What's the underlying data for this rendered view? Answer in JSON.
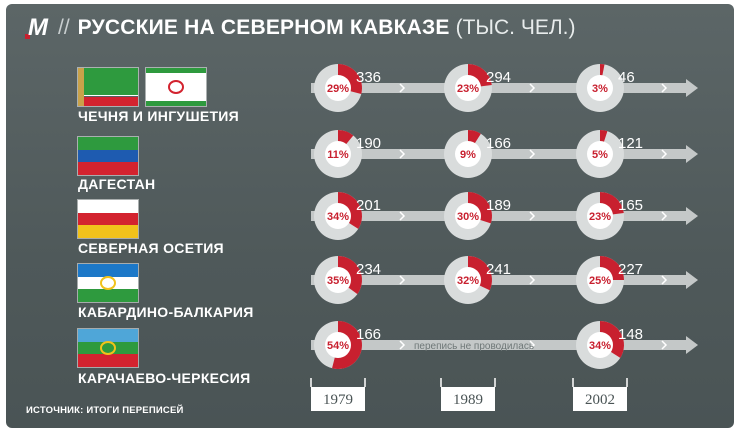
{
  "header": {
    "logo": "М",
    "separator": "//",
    "title": "РУССКИЕ НА СЕВЕРНОМ КАВКАЗЕ",
    "unit": "(ТЫС. ЧЕЛ.)"
  },
  "source": "ИСТОЧНИК: ИТОГИ ПЕРЕПИСЕЙ",
  "colors": {
    "background": "#525c5d",
    "accent_red": "#c8202f",
    "circle_gray": "#d9dcdc",
    "arrow_gray": "#c4c8c8"
  },
  "flags": [
    {
      "name": "chechnya-flag",
      "bands": [
        "#2e9a3e",
        "#ffffff",
        "#d3232f"
      ],
      "heights": [
        0.7,
        0.05,
        0.25
      ],
      "ornament": "#c9a24a"
    },
    {
      "name": "ingushetia-flag",
      "bands": [
        "#2e9a3e",
        "#ffffff",
        "#2e9a3e"
      ],
      "heights": [
        0.14,
        0.72,
        0.14
      ],
      "emblem": "#d3232f"
    },
    {
      "name": "dagestan-flag",
      "bands": [
        "#2e9a3e",
        "#1e5bb0",
        "#d3232f"
      ],
      "heights": [
        0.34,
        0.33,
        0.33
      ]
    },
    {
      "name": "north-ossetia-flag",
      "bands": [
        "#ffffff",
        "#d3232f",
        "#f1c21b"
      ],
      "heights": [
        0.34,
        0.33,
        0.33
      ]
    },
    {
      "name": "kbr-flag",
      "bands": [
        "#1c78c8",
        "#ffffff",
        "#2e9a3e"
      ],
      "heights": [
        0.34,
        0.33,
        0.33
      ],
      "emblem": "#f1c21b"
    },
    {
      "name": "kchr-flag",
      "bands": [
        "#4fa6d8",
        "#2e9a3e",
        "#d3232f"
      ],
      "heights": [
        0.34,
        0.33,
        0.33
      ],
      "emblem": "#f1c21b"
    }
  ],
  "chart_data": {
    "type": "pie",
    "title": "РУССКИЕ НА СЕВЕРНОМ КАВКАЗЕ",
    "unit": "ТЫС. ЧЕЛ.",
    "years": [
      "1979",
      "1989",
      "2002"
    ],
    "no_census_label": "перепись не проводилась",
    "series": [
      {
        "name": "ЧЕЧНЯ И ИНГУШЕТИЯ",
        "share_percent": [
          29,
          23,
          3
        ],
        "thousands": [
          336,
          294,
          46
        ]
      },
      {
        "name": "ДАГЕСТАН",
        "share_percent": [
          11,
          9,
          5
        ],
        "thousands": [
          190,
          166,
          121
        ]
      },
      {
        "name": "СЕВЕРНАЯ ОСЕТИЯ",
        "share_percent": [
          34,
          30,
          23
        ],
        "thousands": [
          201,
          189,
          165
        ]
      },
      {
        "name": "КАБАРДИНО-БАЛКАРИЯ",
        "share_percent": [
          35,
          32,
          25
        ],
        "thousands": [
          234,
          241,
          227
        ]
      },
      {
        "name": "КАРАЧАЕВО-ЧЕРКЕСИЯ",
        "share_percent": [
          54,
          null,
          34
        ],
        "thousands": [
          166,
          null,
          148
        ]
      }
    ]
  }
}
